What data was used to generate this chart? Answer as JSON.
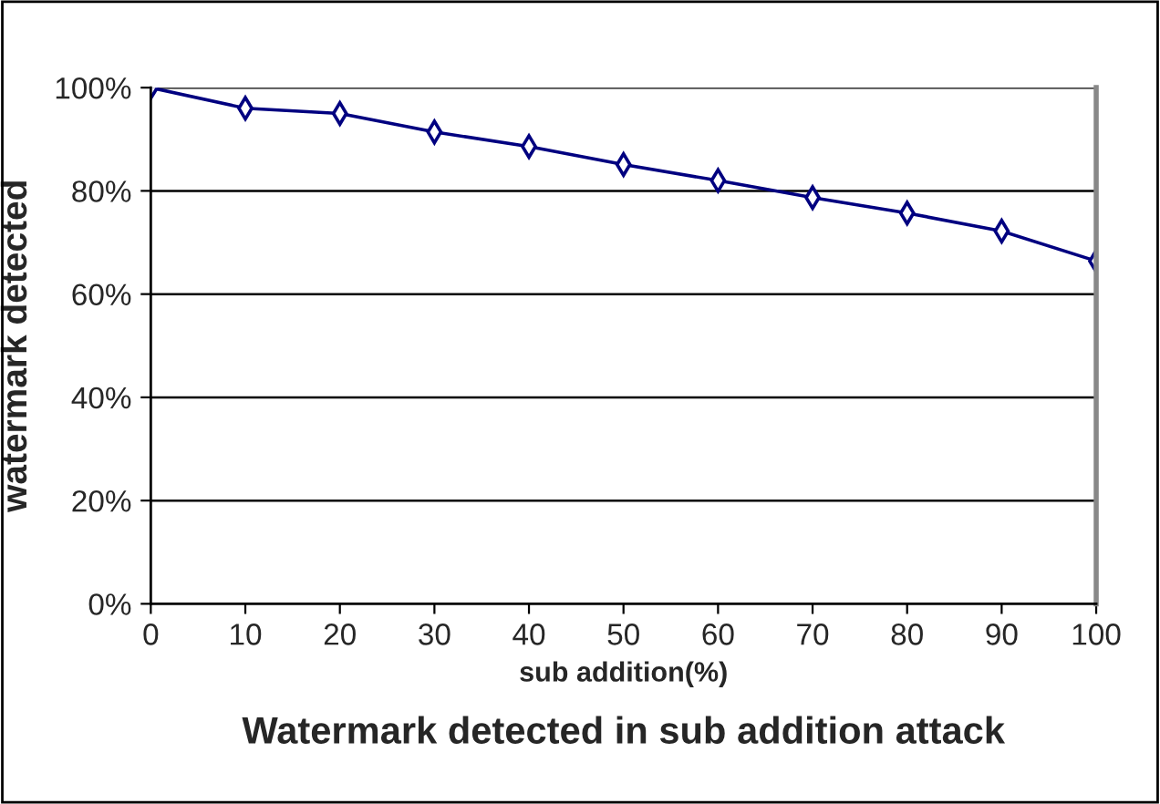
{
  "chart_data": {
    "type": "line",
    "title": "Watermark detected in sub addition attack",
    "xlabel": "sub addition(%)",
    "ylabel": "watermark detected",
    "x": [
      0,
      10,
      20,
      30,
      40,
      50,
      60,
      70,
      80,
      90,
      100
    ],
    "series": [
      {
        "color": "#000080",
        "values": [
          100,
          96,
          95,
          91.4,
          88.6,
          85.1,
          82,
          78.7,
          75.7,
          72.2,
          66.4
        ]
      }
    ],
    "xlim": [
      0,
      100
    ],
    "xticks": [
      0,
      10,
      20,
      30,
      40,
      50,
      60,
      70,
      80,
      90,
      100
    ],
    "ylim": [
      0,
      100
    ],
    "yticks": [
      {
        "value": 0,
        "label": "0%"
      },
      {
        "value": 20,
        "label": "20%"
      },
      {
        "value": 40,
        "label": "40%"
      },
      {
        "value": 60,
        "label": "60%"
      },
      {
        "value": 80,
        "label": "80%"
      },
      {
        "value": 100,
        "label": "100%"
      }
    ],
    "grid": "y",
    "marker": "diamond",
    "line_style": "solid"
  }
}
